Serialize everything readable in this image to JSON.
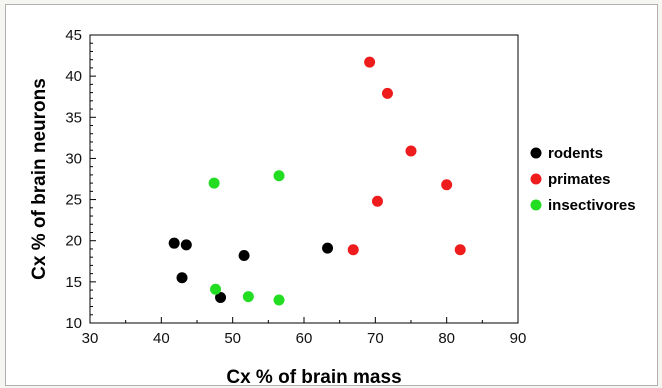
{
  "chart_data": {
    "type": "scatter",
    "title": "",
    "xlabel": "Cx % of brain mass",
    "ylabel": "Cx % of brain neurons",
    "xlim": [
      30,
      90
    ],
    "ylim": [
      10,
      45
    ],
    "xticks": [
      30,
      40,
      50,
      60,
      70,
      80,
      90
    ],
    "yticks": [
      10,
      15,
      20,
      25,
      30,
      35,
      40,
      45
    ],
    "grid": false,
    "legend_position": "right",
    "series": [
      {
        "name": "rodents",
        "color": "#000000",
        "points": [
          {
            "x": 41.8,
            "y": 19.7
          },
          {
            "x": 43.5,
            "y": 19.5
          },
          {
            "x": 42.9,
            "y": 15.5
          },
          {
            "x": 48.3,
            "y": 13.1
          },
          {
            "x": 51.6,
            "y": 18.2
          },
          {
            "x": 63.3,
            "y": 19.1
          }
        ]
      },
      {
        "name": "primates",
        "color": "#ee1c1c",
        "points": [
          {
            "x": 69.2,
            "y": 41.7
          },
          {
            "x": 71.7,
            "y": 37.9
          },
          {
            "x": 75.0,
            "y": 30.9
          },
          {
            "x": 80.0,
            "y": 26.8
          },
          {
            "x": 70.3,
            "y": 24.8
          },
          {
            "x": 66.9,
            "y": 18.9
          },
          {
            "x": 81.9,
            "y": 18.9
          }
        ]
      },
      {
        "name": "insectivores",
        "color": "#22dd22",
        "points": [
          {
            "x": 47.4,
            "y": 27.0
          },
          {
            "x": 56.5,
            "y": 27.9
          },
          {
            "x": 47.6,
            "y": 14.1
          },
          {
            "x": 52.2,
            "y": 13.2
          },
          {
            "x": 56.5,
            "y": 12.8
          }
        ]
      }
    ]
  }
}
